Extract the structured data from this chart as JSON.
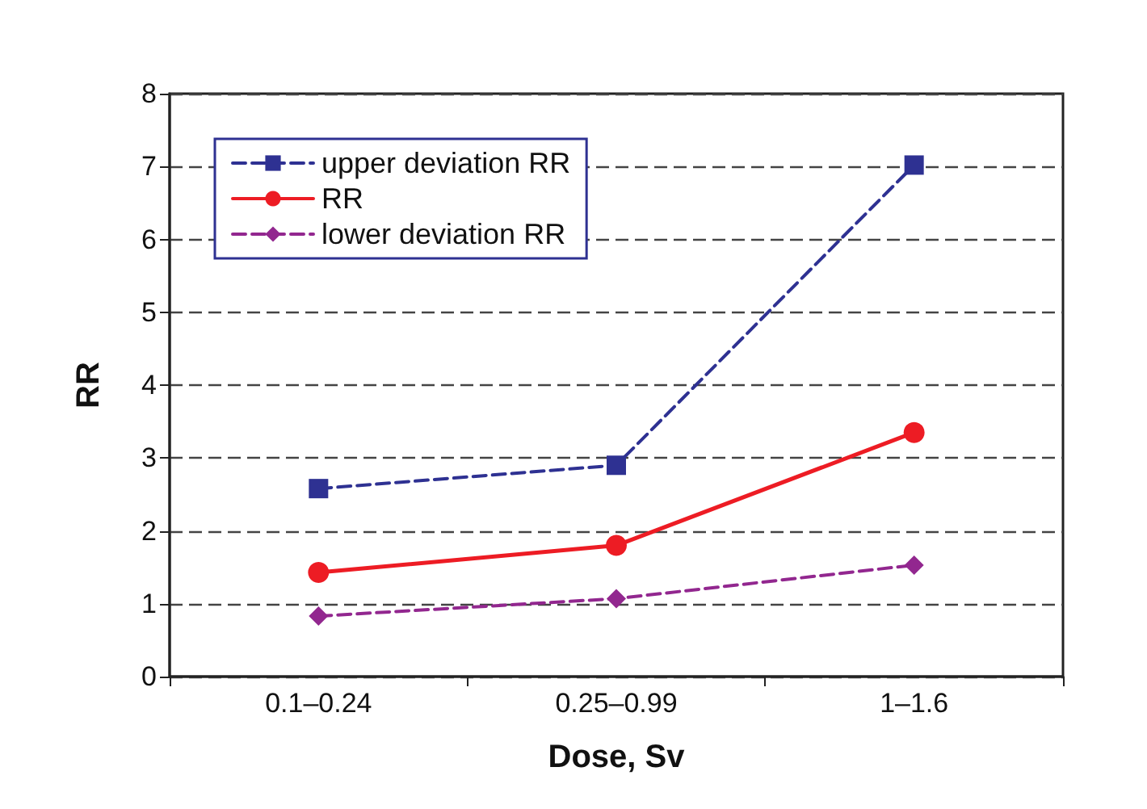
{
  "chart_data": {
    "type": "line",
    "xlabel": "Dose, Sv",
    "ylabel": "RR",
    "categories": [
      "0.1–0.24",
      "0.25–0.99",
      "1–1.6"
    ],
    "series": [
      {
        "name": "upper deviation RR",
        "color": "#2e3192",
        "values": [
          2.58,
          2.9,
          7.02
        ],
        "marker": "square",
        "line_style": "dashed"
      },
      {
        "name": "RR",
        "color": "#ed1c24",
        "values": [
          1.43,
          1.8,
          3.35
        ],
        "marker": "circle",
        "line_style": "solid"
      },
      {
        "name": "lower deviation RR",
        "color": "#92278f",
        "values": [
          0.83,
          1.07,
          1.53
        ],
        "marker": "diamond",
        "line_style": "dashed"
      }
    ],
    "ylim": [
      0,
      8
    ],
    "yticks": [
      0,
      1,
      2,
      3,
      4,
      5,
      6,
      7,
      8
    ],
    "grid": "y",
    "legend": "top left"
  }
}
